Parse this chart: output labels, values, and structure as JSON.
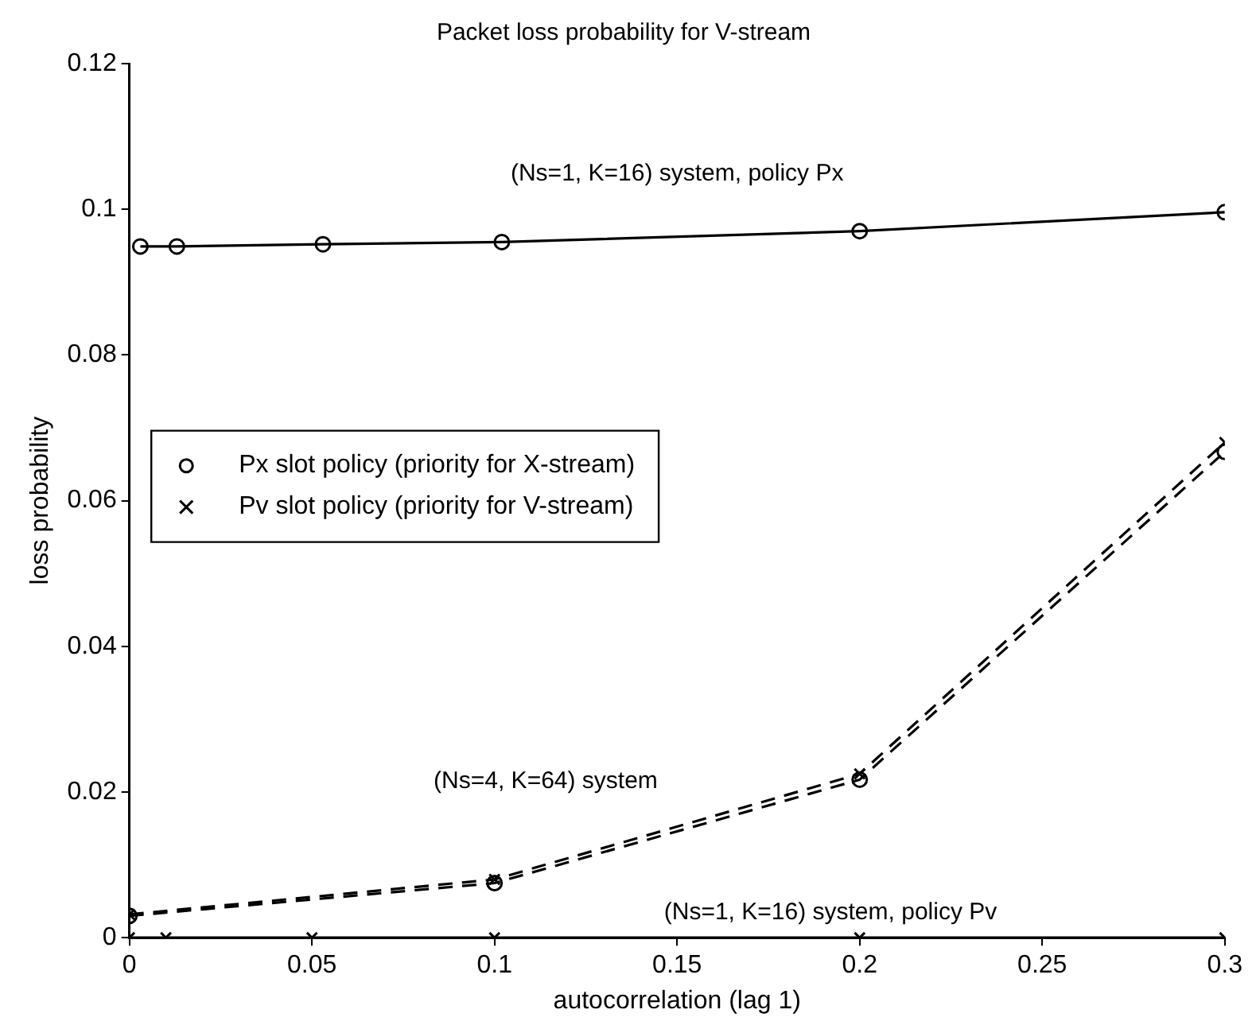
{
  "chart_data": {
    "type": "line",
    "title": "Packet loss probability for V-stream",
    "xlabel": "autocorrelation (lag 1)",
    "ylabel": "loss probability",
    "xlim": [
      0,
      0.3
    ],
    "xticks": [
      0,
      0.05,
      0.1,
      0.15,
      0.2,
      0.25,
      0.3
    ],
    "ylim": [
      0,
      0.12
    ],
    "yticks": [
      0,
      0.02,
      0.04,
      0.06,
      0.08,
      0.1,
      0.12
    ],
    "grid": false,
    "legend": "left",
    "series": [
      {
        "color": "#000000",
        "marker": "circle",
        "line_style": "solid",
        "x": [
          0.003,
          0.013,
          0.053,
          0.102,
          0.2,
          0.3
        ],
        "values": [
          0.0949,
          0.0949,
          0.0952,
          0.0955,
          0.097,
          0.0996
        ]
      },
      {
        "color": "#000000",
        "marker": "cross",
        "line_style": "solid",
        "x": [
          0,
          0.01,
          0.05,
          0.1,
          0.2,
          0.3
        ],
        "values": [
          0,
          0,
          0,
          0,
          0,
          0
        ]
      },
      {
        "name": "Px slot policy (priority for X-stream)",
        "color": "#000000",
        "marker": "circle",
        "line_style": "dashed",
        "x": [
          0,
          0.1,
          0.2,
          0.3
        ],
        "values": [
          0.003,
          0.0075,
          0.0217,
          0.0667
        ]
      },
      {
        "name": "Pv slot policy (priority for V-stream)",
        "color": "#000000",
        "marker": "cross",
        "line_style": "dashed",
        "x": [
          0,
          0.1,
          0.2,
          0.3
        ],
        "values": [
          0.0032,
          0.008,
          0.0225,
          0.068
        ]
      }
    ],
    "annotations": [
      "(Ns=1, K=16) system, policy Px",
      "(Ns=4, K=64) system",
      "(Ns=1, K=16) system, policy Pv"
    ]
  }
}
